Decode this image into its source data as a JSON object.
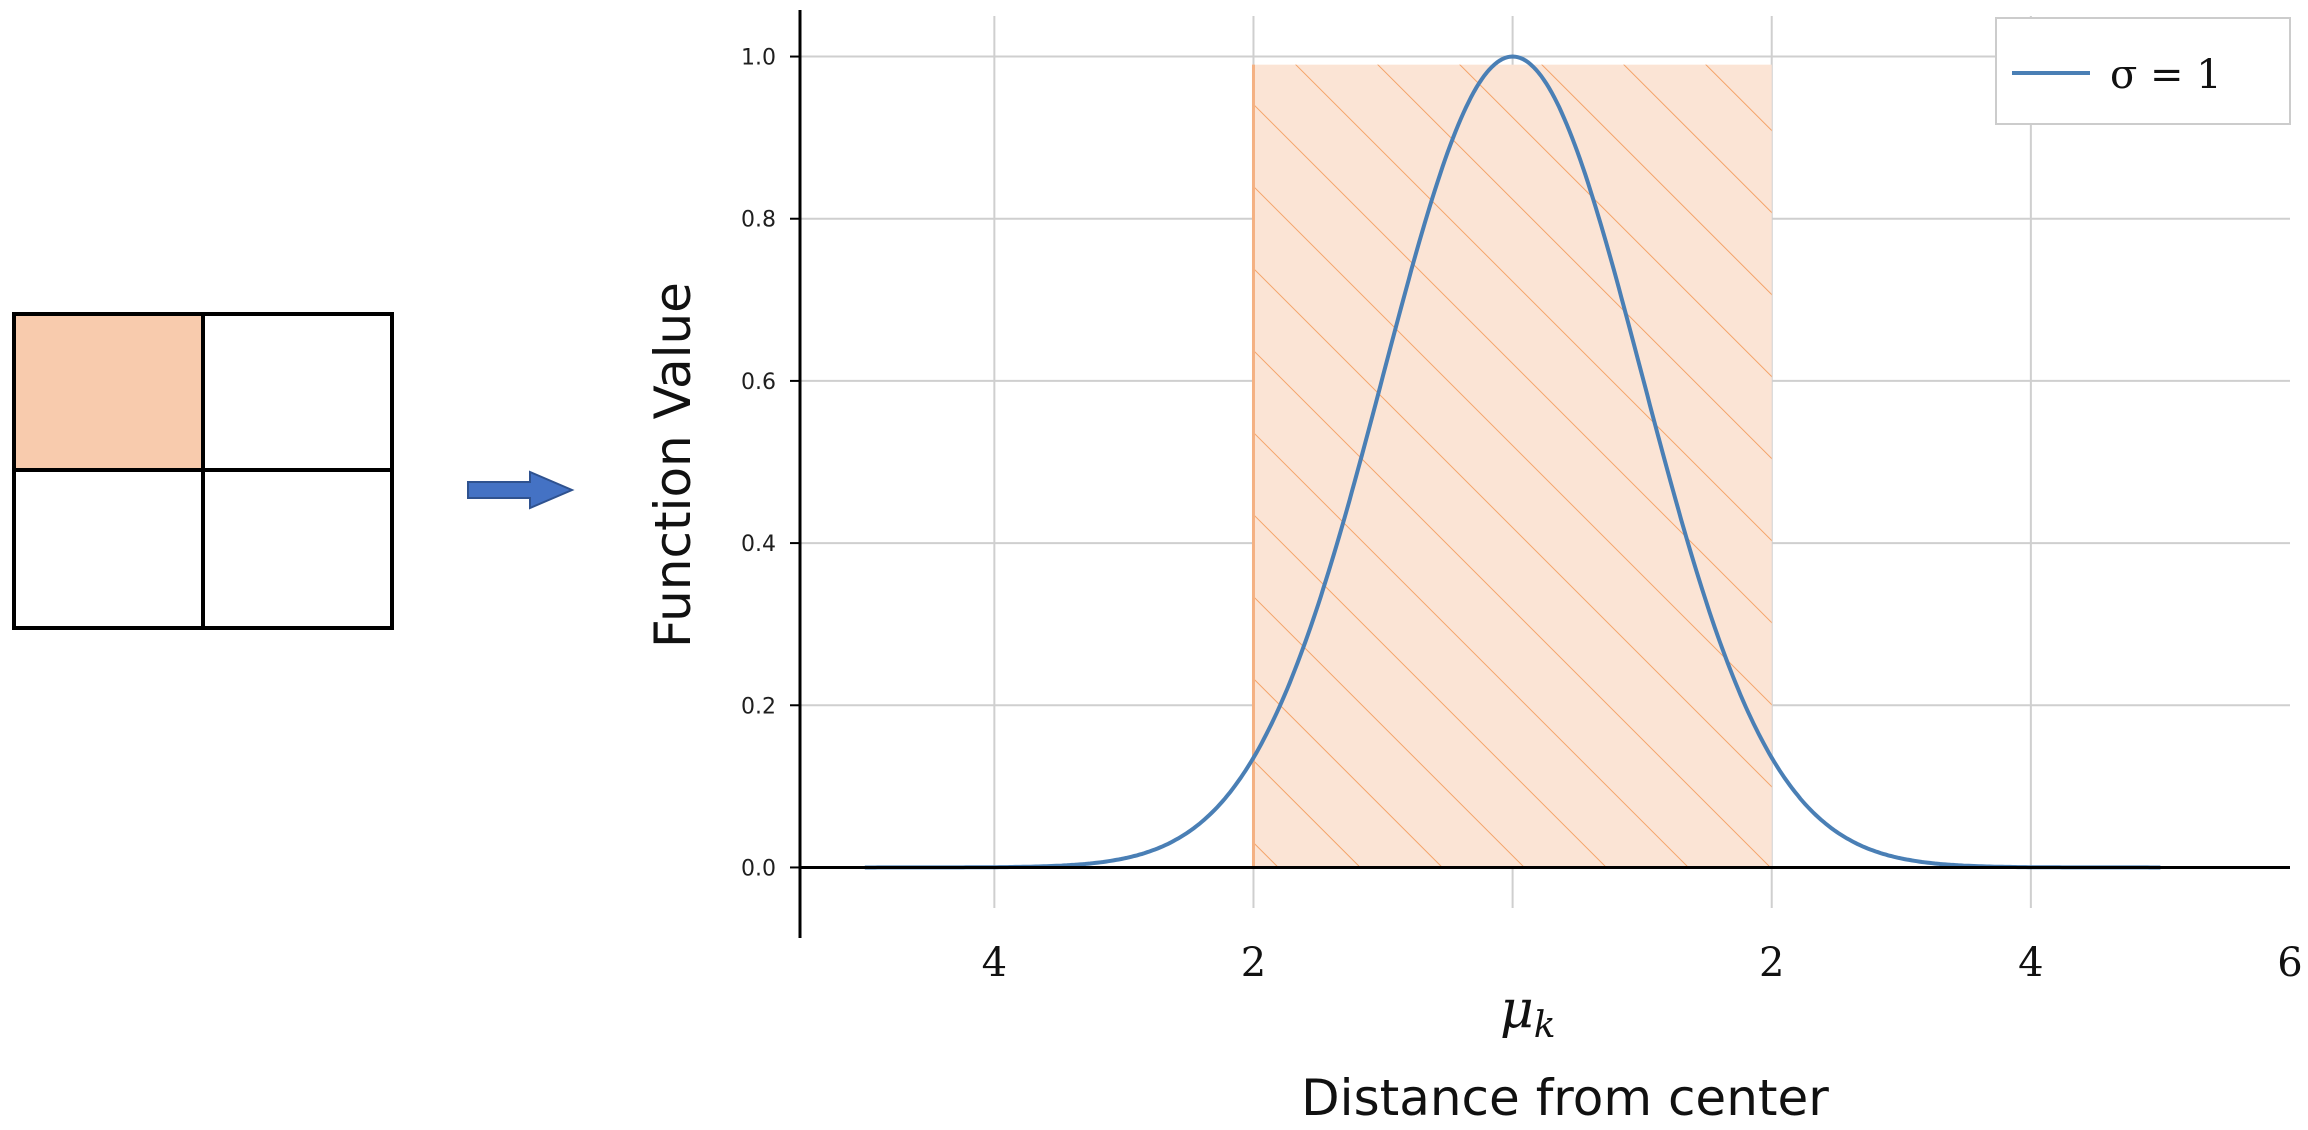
{
  "chart_data": {
    "type": "line",
    "ylabel": "Function Value",
    "xlabel": "Distance from center",
    "center_label_base": "μ",
    "center_label_sub": "k",
    "x_tick_labels": [
      {
        "x": -4,
        "label": "4"
      },
      {
        "x": -2,
        "label": "2"
      },
      {
        "x": 2,
        "label": "2"
      },
      {
        "x": 4,
        "label": "4"
      },
      {
        "x": 6,
        "label": "6"
      }
    ],
    "y_ticks": [
      "0.0",
      "0.2",
      "0.4",
      "0.6",
      "0.8",
      "1.0"
    ],
    "xlim": [
      -5.5,
      6
    ],
    "ylim": [
      -0.05,
      1.05
    ],
    "grid": true,
    "legend_position": "top-right",
    "shaded_region": {
      "x_start": -2,
      "x_end": 2,
      "y_top": 0.99,
      "fill": "#fbe4d5",
      "hatch_color": "#f4a46a"
    },
    "series": [
      {
        "name": "σ = 1",
        "color": "#4a7fb5",
        "x": [
          -5,
          -4,
          -3,
          -2.5,
          -2,
          -1.75,
          -1.5,
          -1.25,
          -1,
          -0.75,
          -0.5,
          -0.25,
          0,
          0.25,
          0.5,
          0.75,
          1,
          1.25,
          1.5,
          1.75,
          2,
          2.5,
          3,
          4,
          5
        ],
        "y": [
          0.0,
          0.0003,
          0.011,
          0.044,
          0.135,
          0.216,
          0.325,
          0.458,
          0.607,
          0.755,
          0.882,
          0.969,
          1.0,
          0.969,
          0.882,
          0.755,
          0.607,
          0.458,
          0.325,
          0.216,
          0.135,
          0.044,
          0.011,
          0.0003,
          0.0
        ]
      }
    ]
  },
  "grid_figure": {
    "highlight_color": "#f8cbad",
    "highlighted_cell": "top-left"
  },
  "arrow": {
    "color": "#4472c4"
  }
}
